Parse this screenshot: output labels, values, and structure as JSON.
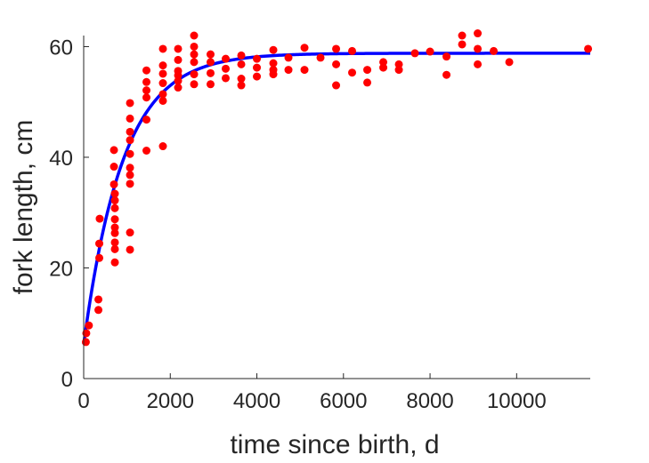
{
  "chart_data": {
    "type": "scatter",
    "xlabel": "time since birth, d",
    "ylabel": "fork length, cm",
    "xlim": [
      0,
      11700
    ],
    "ylim": [
      0,
      62
    ],
    "xticks": [
      0,
      2000,
      4000,
      6000,
      8000,
      10000
    ],
    "yticks": [
      0,
      20,
      40,
      60
    ],
    "grid": false,
    "legend": "none",
    "colors": {
      "points": "#ff0000",
      "fit": "#0000ff",
      "axis": "#262626"
    },
    "series": [
      {
        "kind": "points",
        "points": [
          [
            50,
            6.6
          ],
          [
            60,
            8.2
          ],
          [
            120,
            9.6
          ],
          [
            340,
            14.3
          ],
          [
            340,
            12.4
          ],
          [
            360,
            24.4
          ],
          [
            360,
            21.8
          ],
          [
            370,
            28.9
          ],
          [
            700,
            41.3
          ],
          [
            700,
            38.3
          ],
          [
            700,
            35.1
          ],
          [
            720,
            33.4
          ],
          [
            720,
            32.2
          ],
          [
            720,
            30.8
          ],
          [
            720,
            28.8
          ],
          [
            720,
            27.3
          ],
          [
            720,
            26.3
          ],
          [
            720,
            24.6
          ],
          [
            720,
            23.4
          ],
          [
            720,
            21.0
          ],
          [
            1070,
            49.8
          ],
          [
            1070,
            47.0
          ],
          [
            1070,
            44.6
          ],
          [
            1070,
            43.1
          ],
          [
            1070,
            40.6
          ],
          [
            1070,
            38.1
          ],
          [
            1070,
            36.8
          ],
          [
            1070,
            35.2
          ],
          [
            1070,
            26.4
          ],
          [
            1070,
            23.3
          ],
          [
            1450,
            55.7
          ],
          [
            1450,
            53.6
          ],
          [
            1450,
            52.1
          ],
          [
            1450,
            50.8
          ],
          [
            1450,
            46.8
          ],
          [
            1450,
            41.2
          ],
          [
            1830,
            59.6
          ],
          [
            1830,
            56.6
          ],
          [
            1830,
            55.1
          ],
          [
            1830,
            53.4
          ],
          [
            1830,
            51.4
          ],
          [
            1830,
            50.2
          ],
          [
            1830,
            42.0
          ],
          [
            2180,
            59.6
          ],
          [
            2180,
            57.6
          ],
          [
            2180,
            55.6
          ],
          [
            2180,
            54.8
          ],
          [
            2180,
            53.8
          ],
          [
            2180,
            52.6
          ],
          [
            2550,
            62.0
          ],
          [
            2550,
            60.0
          ],
          [
            2550,
            58.6
          ],
          [
            2550,
            57.2
          ],
          [
            2550,
            55.0
          ],
          [
            2550,
            53.2
          ],
          [
            2930,
            58.6
          ],
          [
            2930,
            57.2
          ],
          [
            2930,
            55.2
          ],
          [
            2930,
            53.2
          ],
          [
            3280,
            57.8
          ],
          [
            3280,
            56.0
          ],
          [
            3280,
            54.3
          ],
          [
            3640,
            58.4
          ],
          [
            3640,
            56.8
          ],
          [
            3640,
            54.2
          ],
          [
            3640,
            53.0
          ],
          [
            4000,
            57.8
          ],
          [
            4000,
            56.2
          ],
          [
            4000,
            54.6
          ],
          [
            4380,
            59.4
          ],
          [
            4380,
            57.0
          ],
          [
            4380,
            55.8
          ],
          [
            4380,
            55.0
          ],
          [
            4730,
            58.0
          ],
          [
            4730,
            55.8
          ],
          [
            5100,
            59.8
          ],
          [
            5100,
            55.8
          ],
          [
            5470,
            58.0
          ],
          [
            5830,
            59.6
          ],
          [
            5830,
            56.8
          ],
          [
            5830,
            53.0
          ],
          [
            6200,
            59.2
          ],
          [
            6200,
            55.3
          ],
          [
            6550,
            55.8
          ],
          [
            6550,
            53.5
          ],
          [
            6920,
            57.2
          ],
          [
            6920,
            56.2
          ],
          [
            7280,
            56.8
          ],
          [
            7280,
            55.8
          ],
          [
            7650,
            58.8
          ],
          [
            8000,
            59.1
          ],
          [
            8380,
            58.2
          ],
          [
            8380,
            54.9
          ],
          [
            8740,
            62.0
          ],
          [
            8740,
            60.4
          ],
          [
            9100,
            62.4
          ],
          [
            9100,
            59.6
          ],
          [
            9100,
            56.8
          ],
          [
            9470,
            59.2
          ],
          [
            9830,
            57.2
          ],
          [
            11650,
            59.6
          ]
        ]
      },
      {
        "kind": "fit",
        "model": "von Bertalanffy",
        "Linf": 58.8,
        "L0": 6.2,
        "k": 0.0011
      }
    ]
  }
}
